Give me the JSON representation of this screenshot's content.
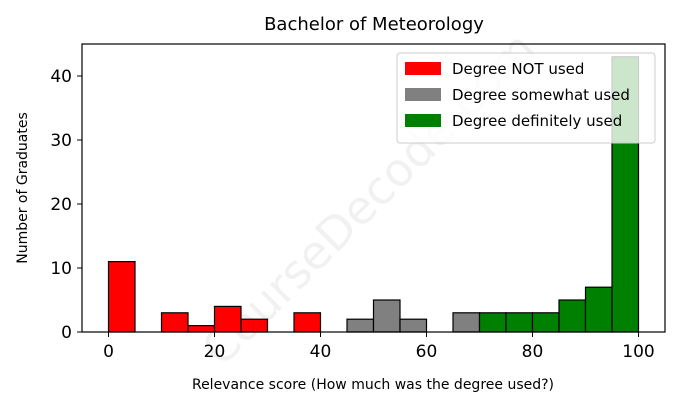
{
  "watermark": "CourseDecode.com",
  "chart_data": {
    "type": "bar",
    "title": "Bachelor of Meteorology",
    "xlabel": "Relevance score (How much was the degree used?)",
    "ylabel": "Number of Graduates",
    "xlim": [
      -5,
      105
    ],
    "ylim": [
      0,
      45
    ],
    "xticks": [
      0,
      20,
      40,
      60,
      80,
      100
    ],
    "yticks": [
      0,
      10,
      20,
      30,
      40
    ],
    "grid": false,
    "legend_position": "top-right",
    "series": [
      {
        "name": "Degree NOT used",
        "color": "#ff0000",
        "bins": [
          {
            "x0": 0,
            "x1": 5,
            "count": 11
          },
          {
            "x0": 10,
            "x1": 15,
            "count": 3
          },
          {
            "x0": 15,
            "x1": 20,
            "count": 1
          },
          {
            "x0": 20,
            "x1": 25,
            "count": 4
          },
          {
            "x0": 25,
            "x1": 30,
            "count": 2
          },
          {
            "x0": 35,
            "x1": 40,
            "count": 3
          }
        ]
      },
      {
        "name": "Degree somewhat used",
        "color": "#808080",
        "bins": [
          {
            "x0": 45,
            "x1": 50,
            "count": 2
          },
          {
            "x0": 50,
            "x1": 55,
            "count": 5
          },
          {
            "x0": 55,
            "x1": 60,
            "count": 2
          },
          {
            "x0": 65,
            "x1": 70,
            "count": 3
          }
        ]
      },
      {
        "name": "Degree definitely used",
        "color": "#008000",
        "bins": [
          {
            "x0": 70,
            "x1": 75,
            "count": 3
          },
          {
            "x0": 75,
            "x1": 80,
            "count": 3
          },
          {
            "x0": 80,
            "x1": 85,
            "count": 3
          },
          {
            "x0": 85,
            "x1": 90,
            "count": 5
          },
          {
            "x0": 90,
            "x1": 95,
            "count": 7
          },
          {
            "x0": 95,
            "x1": 100,
            "count": 43
          }
        ]
      }
    ]
  }
}
